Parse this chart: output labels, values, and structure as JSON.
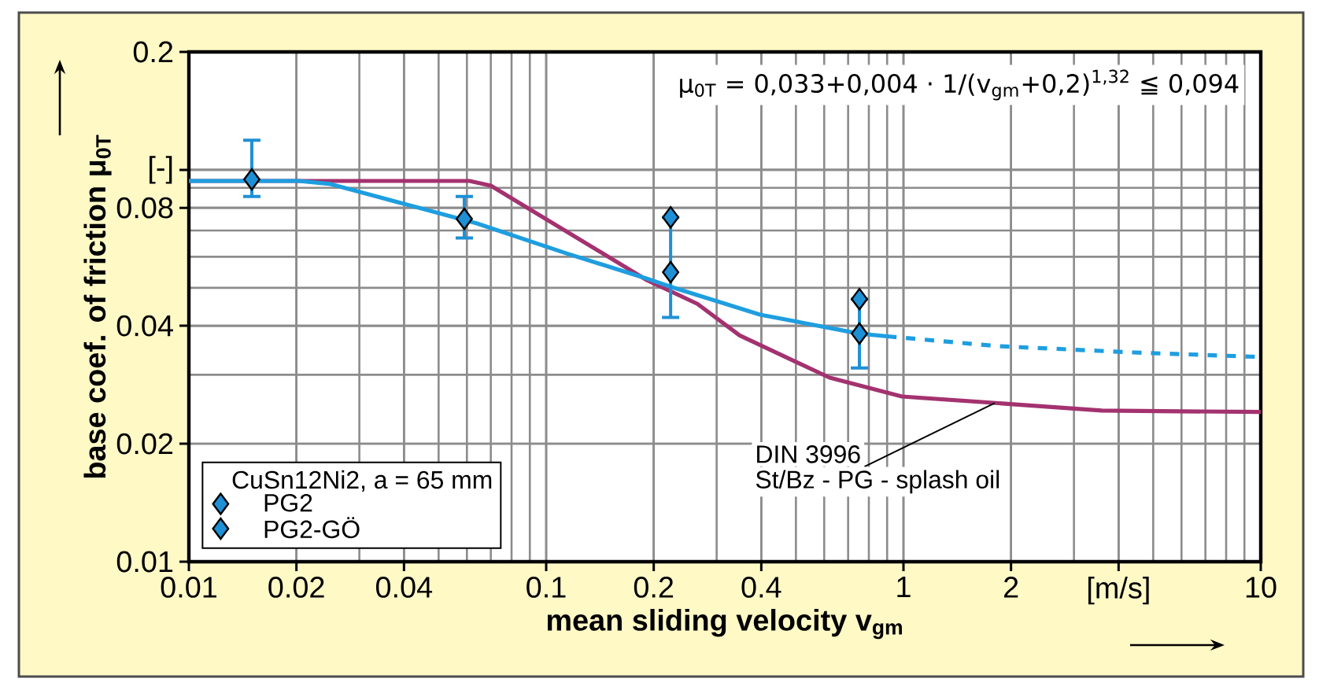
{
  "chart_data": {
    "type": "line",
    "xlabel": "mean sliding velocity v$_{gm}$",
    "ylabel": "base coef. of friction μ$_{0T}$",
    "legend_title": "CuSn12Ni2, a = 65 mm",
    "legend": "bottom left",
    "grid": true,
    "log": "xy",
    "xlim": [
      0.01,
      10
    ],
    "ylim": [
      0.01,
      0.2
    ],
    "xticks": [
      0.01,
      0.02,
      0.04,
      0.1,
      0.2,
      0.4,
      1,
      2,
      {
        "value": 4,
        "label": "[m/s]"
      },
      10
    ],
    "yticks": [
      0.01,
      0.02,
      0.04,
      0.08,
      {
        "value": 0.1,
        "label": "[-]"
      },
      0.2
    ],
    "annotations": [
      "μ$_{0T}$ = 0,033+0,004 · 1/(v$_{gm}$+0,2)$^{1,32}$ ≦ 0,094",
      {
        "text": "DIN 3996",
        "x": 1.8,
        "y": 0.0254
      },
      "St/Bz - PG - splash oil"
    ],
    "series": [
      {
        "type": "line",
        "color": "#a3326f",
        "x": [
          0.01,
          0.061,
          0.07,
          0.19,
          0.265,
          0.348,
          0.621,
          0.99,
          2.06,
          3.59,
          10
        ],
        "values": [
          0.0937,
          0.0937,
          0.0911,
          0.0525,
          0.0455,
          0.0378,
          0.0295,
          0.0264,
          0.0252,
          0.0243,
          0.0241
        ]
      },
      {
        "type": "line",
        "color": "#1e9ee0",
        "x": [
          0.01,
          0.0203,
          0.0249,
          0.064,
          0.114,
          0.19,
          0.223,
          0.397,
          0.753,
          0.9
        ],
        "values": [
          0.0937,
          0.0937,
          0.092,
          0.073,
          0.0612,
          0.0529,
          0.0503,
          0.0427,
          0.0382,
          0.0376
        ]
      },
      {
        "type": "line",
        "color": "#1e9ee0",
        "line_style": "dashed",
        "x": [
          0.9,
          1.83,
          4.4,
          10
        ],
        "values": [
          0.0376,
          0.0355,
          0.0342,
          0.0333
        ]
      },
      {
        "type": "scatter",
        "name": "PG2",
        "color": "#1e90d6",
        "marker": "diamond",
        "x": [
          0.015,
          0.059,
          0.223,
          0.753
        ],
        "values": [
          0.0946,
          0.075,
          0.0548,
          0.0382
        ],
        "errors": [
          [
            0.0855,
            0.119
          ],
          [
            0.067,
            0.0855
          ],
          [
            0.042,
            0.0757
          ],
          [
            0.0312,
            0.0468
          ]
        ]
      },
      {
        "type": "scatter",
        "name": "PG2-GÖ",
        "color": "#1e90d6",
        "marker": "diamond",
        "x": [
          0.223,
          0.753
        ],
        "values": [
          0.0757,
          0.0468
        ]
      }
    ]
  }
}
